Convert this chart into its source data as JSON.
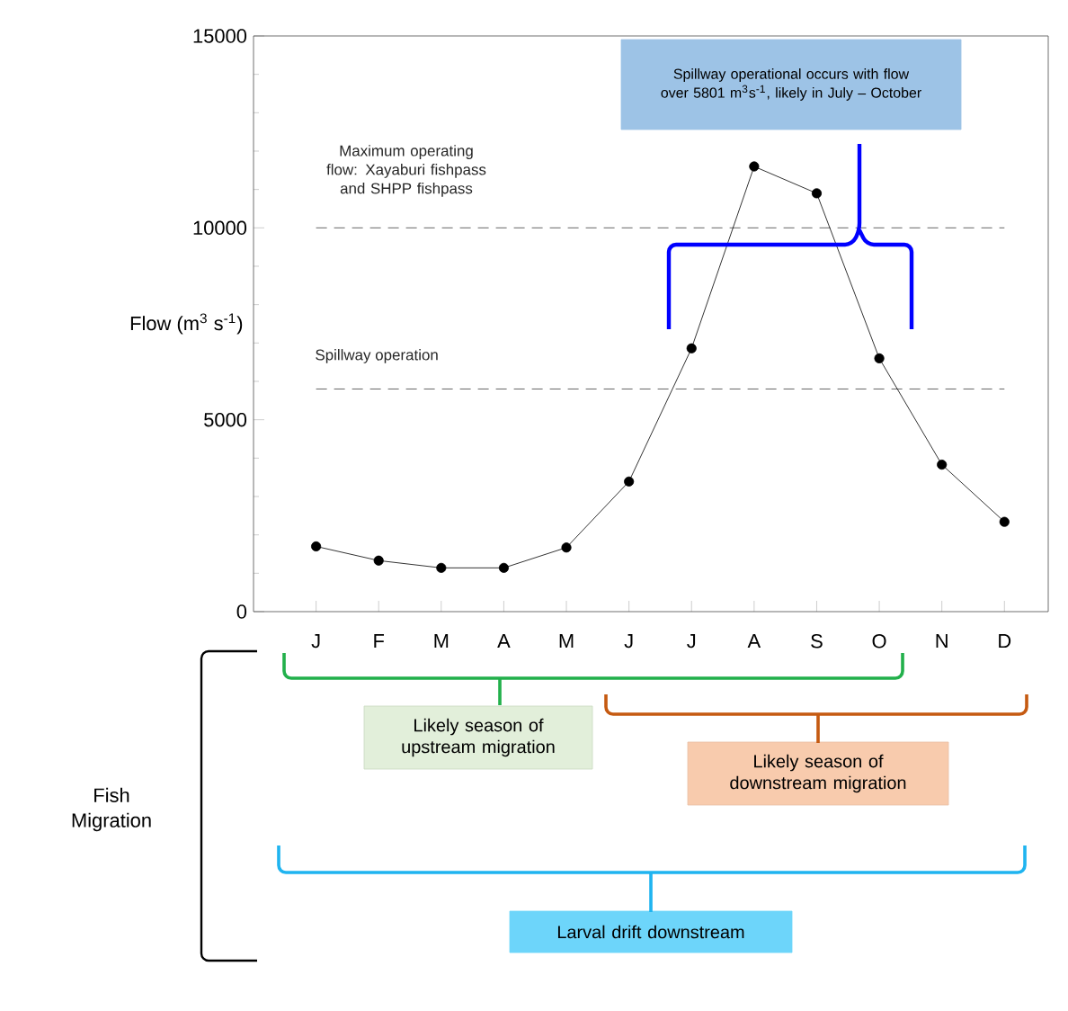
{
  "chart_data": {
    "type": "line",
    "ylabel": "Flow (m$^{3}$ s$^{-1}$)",
    "categories": [
      "J",
      "F",
      "M",
      "A",
      "M",
      "J",
      "J",
      "A",
      "S",
      "O",
      "N",
      "D"
    ],
    "series": [
      {
        "color": "#000000",
        "values": [
          1700,
          1330,
          1140,
          1140,
          1670,
          3390,
          6860,
          11600,
          10900,
          6600,
          3830,
          2340
        ]
      }
    ],
    "ylim": [
      0,
      15000
    ],
    "yticks": [
      0,
      5000,
      10000,
      15000
    ],
    "marker": "circle",
    "line_style": "solid",
    "ref_lines": [
      {
        "axis": "y",
        "value": 10000,
        "label": "Maximum operating flow: Xayaburi fishpass and SHPP fishpass",
        "color": "#404040",
        "line_style": "dashed"
      },
      {
        "axis": "y",
        "value": 5801,
        "label": "Spillway operation",
        "color": "#404040",
        "line_style": "dashed"
      }
    ],
    "annotations": [
      "Spillway operational occurs with flow over 5801 m$^{3}$s$^{-1}$, likely in July – October",
      "Likely season of upstream migration",
      "Likely season of downstream migration",
      "Larval drift downstream",
      "Fish Migration"
    ]
  }
}
